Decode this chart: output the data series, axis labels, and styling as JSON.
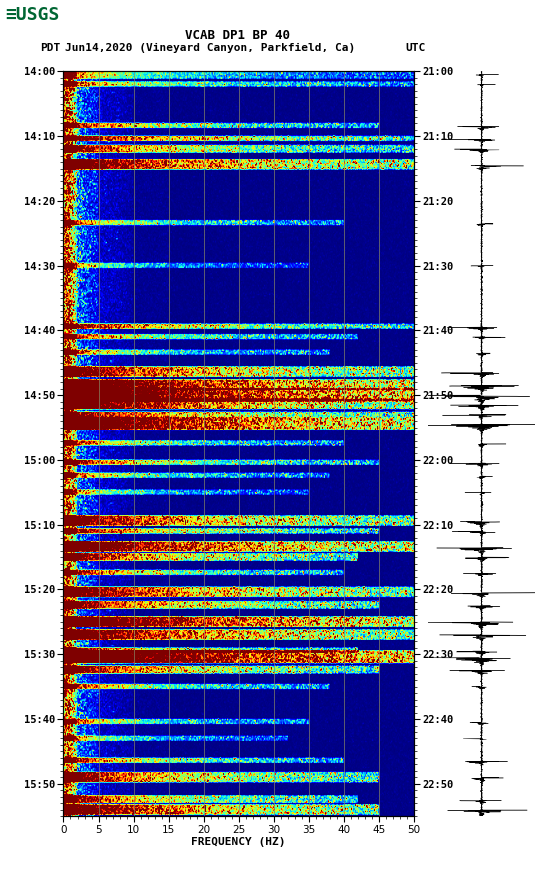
{
  "title_line1": "VCAB DP1 BP 40",
  "title_line2_pdt": "PDT",
  "title_line2_date": "Jun14,2020 (Vineyard Canyon, Parkfield, Ca)",
  "title_line2_utc": "UTC",
  "xlabel": "FREQUENCY (HZ)",
  "freq_min": 0,
  "freq_max": 50,
  "total_minutes": 115,
  "pdt_ticks": [
    "14:00",
    "14:10",
    "14:20",
    "14:30",
    "14:40",
    "14:50",
    "15:00",
    "15:10",
    "15:20",
    "15:30",
    "15:40",
    "15:50"
  ],
  "utc_ticks": [
    "21:00",
    "21:10",
    "21:20",
    "21:30",
    "21:40",
    "21:50",
    "22:00",
    "22:10",
    "22:20",
    "22:30",
    "22:40",
    "22:50"
  ],
  "tick_minutes": [
    0,
    10,
    20,
    30,
    40,
    50,
    60,
    70,
    80,
    90,
    100,
    110
  ],
  "freq_gridlines": [
    5,
    10,
    15,
    20,
    25,
    30,
    35,
    40,
    45
  ],
  "usgs_green": "#006633",
  "gridline_color": "#888866"
}
